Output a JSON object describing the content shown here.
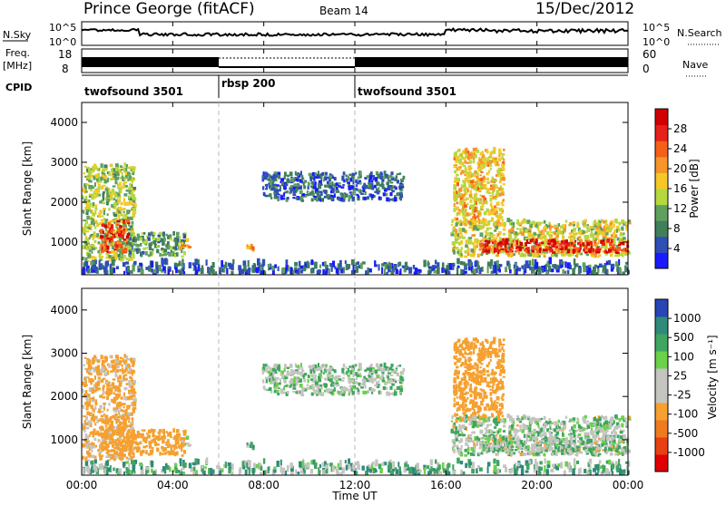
{
  "header": {
    "station": "Prince George (fitACF)",
    "beam": "Beam 14",
    "date": "15/Dec/2012"
  },
  "strips": {
    "nsky_label": "N.Sky",
    "nsky_ticks": [
      "10^5",
      "10^0"
    ],
    "nsearch_label": "N.Search",
    "nsearch_ticks": [
      "10^5",
      "10^0"
    ],
    "freq_label_1": "Freq.",
    "freq_label_2": "[MHz]",
    "freq_ticks": [
      "18",
      "8"
    ],
    "nave_label": "Nave",
    "nave_ticks": [
      "60",
      "0"
    ],
    "cpid_label": "CPID",
    "cpid_segments": [
      {
        "name": "twofsound 3501",
        "start_hour": 0,
        "end_hour": 6
      },
      {
        "name": "rbsp 200",
        "start_hour": 6,
        "end_hour": 12
      },
      {
        "name": "twofsound 3501",
        "start_hour": 12,
        "end_hour": 24
      }
    ]
  },
  "axes": {
    "x_ticks": [
      "00:00",
      "04:00",
      "08:00",
      "12:00",
      "16:00",
      "20:00",
      "00:00"
    ],
    "x_label": "Time UT",
    "y_label": "Slant Range [km]",
    "y_ticks": [
      "1000",
      "2000",
      "3000",
      "4000"
    ]
  },
  "colorbars": {
    "power": {
      "label": "Power [dB]",
      "ticks": [
        "4",
        "8",
        "12",
        "16",
        "20",
        "24",
        "28"
      ],
      "colors": [
        "#1a1aff",
        "#2f4fb5",
        "#3f7f5a",
        "#5fa05f",
        "#b5d83f",
        "#f5c828",
        "#f5952a",
        "#f56018",
        "#e8201a",
        "#d00000"
      ]
    },
    "velocity": {
      "label": "Velocity [m s⁻¹]",
      "ticks": [
        "1000",
        "500",
        "100",
        "25",
        "-25",
        "-100",
        "-500",
        "-1000"
      ],
      "colors": [
        "#2845b5",
        "#2f8a7a",
        "#3fa55f",
        "#6bd04a",
        "#c4c4c0",
        "#c4c4c0",
        "#f5a030",
        "#f07a20",
        "#e84010",
        "#e00000"
      ]
    }
  },
  "chart_data": {
    "type": "heatmap",
    "x_range_hours": [
      0,
      24
    ],
    "y_range_km": [
      180,
      4500
    ],
    "power_range_db": [
      0,
      32
    ],
    "velocity_range_ms": [
      -1000,
      1000
    ],
    "scatter_regions": [
      {
        "name": "morning-scatter",
        "t": [
          0.0,
          2.3
        ],
        "r": [
          500,
          2900
        ],
        "power_db": 14,
        "velocity_ms": -150
      },
      {
        "name": "morning-core",
        "t": [
          0.8,
          2.0
        ],
        "r": [
          700,
          1500
        ],
        "power_db": 26,
        "velocity_ms": -200
      },
      {
        "name": "descending-tail",
        "t": [
          2.0,
          4.5
        ],
        "r": [
          600,
          1200
        ],
        "power_db": 10,
        "velocity_ms": -250
      },
      {
        "name": "spot-04h",
        "t": [
          4.3,
          4.7
        ],
        "r": [
          800,
          1000
        ],
        "power_db": 20,
        "velocity_ms": -80
      },
      {
        "name": "spot-07h",
        "t": [
          7.2,
          7.5
        ],
        "r": [
          750,
          950
        ],
        "power_db": 22,
        "velocity_ms": 80
      },
      {
        "name": "midday-band",
        "t": [
          7.9,
          14.1
        ],
        "r": [
          2000,
          2700
        ],
        "power_db": 6,
        "velocity_ms": 0
      },
      {
        "name": "evening-arc",
        "t": [
          16.3,
          18.5
        ],
        "r": [
          1400,
          3300
        ],
        "power_db": 18,
        "velocity_ms": -300
      },
      {
        "name": "evening-band",
        "t": [
          16.2,
          24.0
        ],
        "r": [
          600,
          1500
        ],
        "power_db": 16,
        "velocity_ms": -10
      },
      {
        "name": "evening-core",
        "t": [
          17.5,
          24.0
        ],
        "r": [
          700,
          1000
        ],
        "power_db": 28,
        "velocity_ms": -10
      },
      {
        "name": "ground-noise",
        "t": [
          0.0,
          24.0
        ],
        "r": [
          180,
          450
        ],
        "power_db": 6,
        "velocity_ms": 50
      }
    ]
  }
}
